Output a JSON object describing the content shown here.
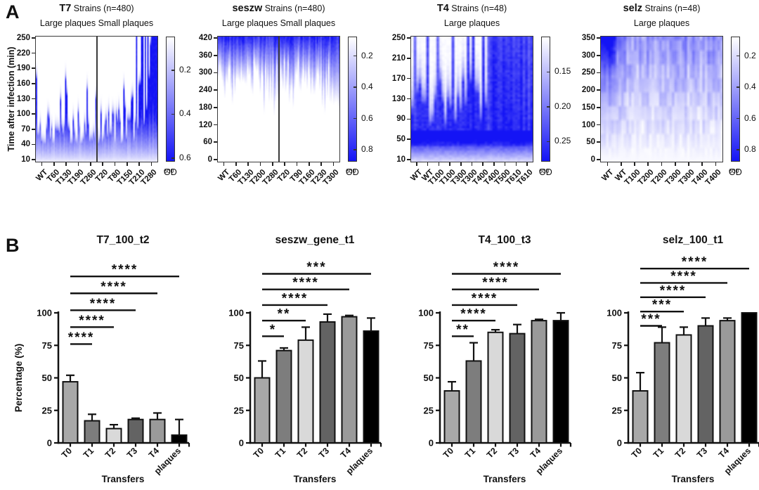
{
  "labels": {
    "panel_a": "A",
    "panel_b": "B",
    "od_label": "OD",
    "od_sub": "600"
  },
  "colors": {
    "heat_max_blue": "#1414f5",
    "frame": "#3a3a3a",
    "text": "#111111",
    "bar_fills": [
      "#a8a8a8",
      "#7d7d7d",
      "#d9d9d9",
      "#636363",
      "#9a9a9a",
      "#000000"
    ]
  },
  "chart_data": {
    "heatmaps": [
      {
        "type": "heatmap",
        "id": "t7",
        "title": "T7",
        "title_note": "Strains (n=480)",
        "col_groups": [
          "Large plaques",
          "Small plaques"
        ],
        "split": true,
        "ylabel": "Time after infection (min)",
        "y_ticks": [
          250,
          220,
          190,
          160,
          130,
          100,
          70,
          40,
          10
        ],
        "x_ticks": [
          "WT",
          "T60",
          "T130",
          "T190",
          "T260",
          "T20",
          "T80",
          "T150",
          "T210",
          "T280"
        ],
        "colorbar_ticks": [
          "0.2",
          "0.4",
          "0.6"
        ],
        "colorbar_min": 0.05,
        "colorbar_max": 0.62,
        "value_desc": "white = low OD600 (lysed), blue = high OD600; most strains lyse by 40-100 min, late small-plaque transfers (T210-T280) fail to lyse and stay dark to 250 min",
        "pattern": "t7",
        "cols": 96,
        "rows": 60,
        "seed": 7
      },
      {
        "type": "heatmap",
        "id": "seszw",
        "title": "seszw",
        "title_note": "Strains (n=480)",
        "col_groups": [
          "Large plaques",
          "Small plaques"
        ],
        "split": true,
        "ylabel": "",
        "y_ticks": [
          420,
          360,
          300,
          240,
          180,
          120,
          60,
          0
        ],
        "x_ticks": [
          "WT",
          "T60",
          "T130",
          "T200",
          "T280",
          "T20",
          "T90",
          "T160",
          "T230",
          "T300"
        ],
        "colorbar_ticks": [
          "0.2",
          "0.4",
          "0.6",
          "0.8"
        ],
        "colorbar_min": 0.08,
        "colorbar_max": 0.88,
        "value_desc": "white below ~240 min, OD rises after ~280-360 min in all strains, darkest at 420 min",
        "pattern": "seszw",
        "cols": 96,
        "rows": 70,
        "seed": 11
      },
      {
        "type": "heatmap",
        "id": "t4",
        "title": "T4",
        "title_note": "Strains (n=48)",
        "col_groups": [
          "Large plaques"
        ],
        "split": false,
        "ylabel": "",
        "y_ticks": [
          250,
          210,
          170,
          130,
          90,
          50,
          10
        ],
        "x_ticks": [
          "WT",
          "WT",
          "T100",
          "T100",
          "T300",
          "T300",
          "T400",
          "T400",
          "T500",
          "T610",
          "T610"
        ],
        "colorbar_ticks": [
          "0.15",
          "0.20",
          "0.25"
        ],
        "colorbar_min": 0.1,
        "colorbar_max": 0.28,
        "value_desc": "dark horizontal band at ~50-70 min in all strains; T100-T300 strains clear above it, T400-T610 strains stay dark to 250 min",
        "pattern": "t4",
        "cols": 48,
        "rows": 56,
        "seed": 4
      },
      {
        "type": "heatmap",
        "id": "selz",
        "title": "selz",
        "title_note": "Strains (n=48)",
        "col_groups": [
          "Large plaques"
        ],
        "split": false,
        "ylabel": "",
        "y_ticks": [
          350,
          300,
          250,
          200,
          150,
          100,
          50,
          0
        ],
        "x_ticks": [
          "WT",
          "WT",
          "T100",
          "T200",
          "T200",
          "T300",
          "T300",
          "T400",
          "T400"
        ],
        "colorbar_ticks": [
          "0.2",
          "0.4",
          "0.6",
          "0.8"
        ],
        "colorbar_min": 0.08,
        "colorbar_max": 0.88,
        "value_desc": "patchy medium-blue mosaic, white near 0 min; WT columns darkest above ~250 min",
        "pattern": "selz",
        "cols": 48,
        "rows": 36,
        "seed": 21
      }
    ],
    "bar_charts": [
      {
        "type": "bar",
        "title": "T7_100_t2",
        "ylabel": "Percentage (%)",
        "xlabel": "Transfers",
        "categories": [
          "T0",
          "T1",
          "T2",
          "T3",
          "T4",
          "plaques"
        ],
        "values": [
          47,
          17,
          11,
          18,
          18,
          6
        ],
        "errors": [
          5,
          5,
          3,
          1,
          5,
          12
        ],
        "y_ticks": [
          0,
          25,
          50,
          75,
          100
        ],
        "ylim": [
          0,
          100
        ],
        "significance": [
          {
            "from": 0,
            "to": 1,
            "stars": "****",
            "level": 76
          },
          {
            "from": 0,
            "to": 2,
            "stars": "****",
            "level": 89
          },
          {
            "from": 0,
            "to": 3,
            "stars": "****",
            "level": 102
          },
          {
            "from": 0,
            "to": 4,
            "stars": "****",
            "level": 115
          },
          {
            "from": 0,
            "to": 5,
            "stars": "****",
            "level": 128
          }
        ]
      },
      {
        "type": "bar",
        "title": "seszw_gene_t1",
        "ylabel": "",
        "xlabel": "Transfers",
        "categories": [
          "T0",
          "T1",
          "T2",
          "T3",
          "T4",
          "plaques"
        ],
        "values": [
          50,
          71,
          79,
          93,
          97,
          86
        ],
        "errors": [
          13,
          2,
          10,
          6,
          1,
          10
        ],
        "y_ticks": [
          0,
          25,
          50,
          75,
          100
        ],
        "ylim": [
          0,
          100
        ],
        "significance": [
          {
            "from": 0,
            "to": 1,
            "stars": "*",
            "level": 82
          },
          {
            "from": 0,
            "to": 2,
            "stars": "**",
            "level": 94
          },
          {
            "from": 0,
            "to": 3,
            "stars": "****",
            "level": 106
          },
          {
            "from": 0,
            "to": 4,
            "stars": "****",
            "level": 118
          },
          {
            "from": 0,
            "to": 5,
            "stars": "***",
            "level": 130
          }
        ]
      },
      {
        "type": "bar",
        "title": "T4_100_t3",
        "ylabel": "",
        "xlabel": "Transfers",
        "categories": [
          "T0",
          "T1",
          "T2",
          "T3",
          "T4",
          "plaques"
        ],
        "values": [
          40,
          63,
          85,
          84,
          94,
          94
        ],
        "errors": [
          7,
          14,
          2,
          7,
          1,
          6
        ],
        "y_ticks": [
          0,
          25,
          50,
          75,
          100
        ],
        "ylim": [
          0,
          100
        ],
        "significance": [
          {
            "from": 0,
            "to": 1,
            "stars": "**",
            "level": 82
          },
          {
            "from": 0,
            "to": 2,
            "stars": "****",
            "level": 94
          },
          {
            "from": 0,
            "to": 3,
            "stars": "****",
            "level": 106
          },
          {
            "from": 0,
            "to": 4,
            "stars": "****",
            "level": 118
          },
          {
            "from": 0,
            "to": 5,
            "stars": "****",
            "level": 130
          }
        ]
      },
      {
        "type": "bar",
        "title": "selz_100_t1",
        "ylabel": "",
        "xlabel": "Transfers",
        "categories": [
          "T0",
          "T1",
          "T2",
          "T3",
          "T4",
          "plaques"
        ],
        "values": [
          40,
          77,
          83,
          90,
          94,
          100
        ],
        "errors": [
          14,
          12,
          6,
          6,
          2,
          0
        ],
        "y_ticks": [
          0,
          25,
          50,
          75,
          100
        ],
        "ylim": [
          0,
          100
        ],
        "significance": [
          {
            "from": 0,
            "to": 1,
            "stars": "***",
            "level": 90
          },
          {
            "from": 0,
            "to": 2,
            "stars": "***",
            "level": 101
          },
          {
            "from": 0,
            "to": 3,
            "stars": "****",
            "level": 112
          },
          {
            "from": 0,
            "to": 4,
            "stars": "****",
            "level": 123
          },
          {
            "from": 0,
            "to": 5,
            "stars": "****",
            "level": 134
          }
        ]
      }
    ]
  }
}
